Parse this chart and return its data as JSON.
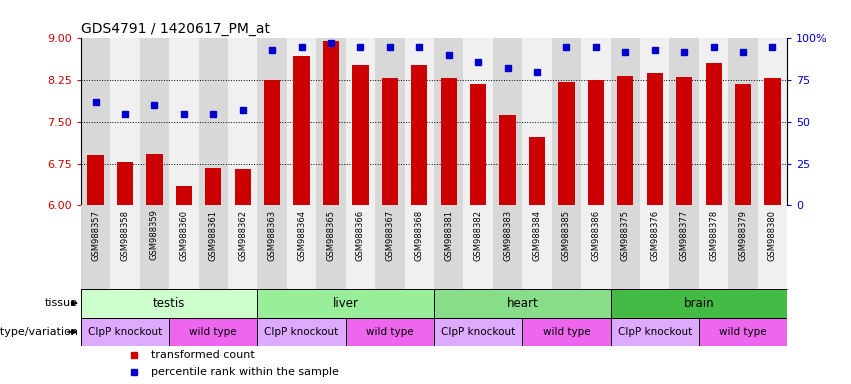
{
  "title": "GDS4791 / 1420617_PM_at",
  "samples": [
    "GSM988357",
    "GSM988358",
    "GSM988359",
    "GSM988360",
    "GSM988361",
    "GSM988362",
    "GSM988363",
    "GSM988364",
    "GSM988365",
    "GSM988366",
    "GSM988367",
    "GSM988368",
    "GSM988381",
    "GSM988382",
    "GSM988383",
    "GSM988384",
    "GSM988385",
    "GSM988386",
    "GSM988375",
    "GSM988376",
    "GSM988377",
    "GSM988378",
    "GSM988379",
    "GSM988380"
  ],
  "bar_values": [
    6.9,
    6.78,
    6.92,
    6.35,
    6.68,
    6.65,
    8.26,
    8.68,
    8.95,
    8.52,
    8.28,
    8.52,
    8.28,
    8.18,
    7.62,
    7.22,
    8.22,
    8.25,
    8.32,
    8.38,
    8.3,
    8.55,
    8.18,
    8.28
  ],
  "percentile_values": [
    62,
    55,
    60,
    55,
    55,
    57,
    93,
    95,
    97,
    95,
    95,
    95,
    90,
    86,
    82,
    80,
    95,
    95,
    92,
    93,
    92,
    95,
    92,
    95
  ],
  "ylim_left": [
    6,
    9
  ],
  "ylim_right": [
    0,
    100
  ],
  "yticks_left": [
    6,
    6.75,
    7.5,
    8.25,
    9
  ],
  "yticks_right": [
    0,
    25,
    50,
    75,
    100
  ],
  "bar_color": "#cc0000",
  "dot_color": "#0000cc",
  "tissues": [
    {
      "label": "testis",
      "start": 0,
      "end": 6,
      "color": "#ccffcc"
    },
    {
      "label": "liver",
      "start": 6,
      "end": 12,
      "color": "#99ee99"
    },
    {
      "label": "heart",
      "start": 12,
      "end": 18,
      "color": "#88dd88"
    },
    {
      "label": "brain",
      "start": 18,
      "end": 24,
      "color": "#44bb44"
    }
  ],
  "genotypes": [
    {
      "label": "ClpP knockout",
      "start": 0,
      "end": 3,
      "color": "#ddaaff"
    },
    {
      "label": "wild type",
      "start": 3,
      "end": 6,
      "color": "#ee66ee"
    },
    {
      "label": "ClpP knockout",
      "start": 6,
      "end": 9,
      "color": "#ddaaff"
    },
    {
      "label": "wild type",
      "start": 9,
      "end": 12,
      "color": "#ee66ee"
    },
    {
      "label": "ClpP knockout",
      "start": 12,
      "end": 15,
      "color": "#ddaaff"
    },
    {
      "label": "wild type",
      "start": 15,
      "end": 18,
      "color": "#ee66ee"
    },
    {
      "label": "ClpP knockout",
      "start": 18,
      "end": 21,
      "color": "#ddaaff"
    },
    {
      "label": "wild type",
      "start": 21,
      "end": 24,
      "color": "#ee66ee"
    }
  ],
  "legend_items": [
    {
      "label": "transformed count",
      "color": "#cc0000"
    },
    {
      "label": "percentile rank within the sample",
      "color": "#0000cc"
    }
  ],
  "bg_color": "#ffffff",
  "label_left": "tissue",
  "label_geno": "genotype/variation",
  "col_bg_even": "#d8d8d8",
  "col_bg_odd": "#f0f0f0"
}
